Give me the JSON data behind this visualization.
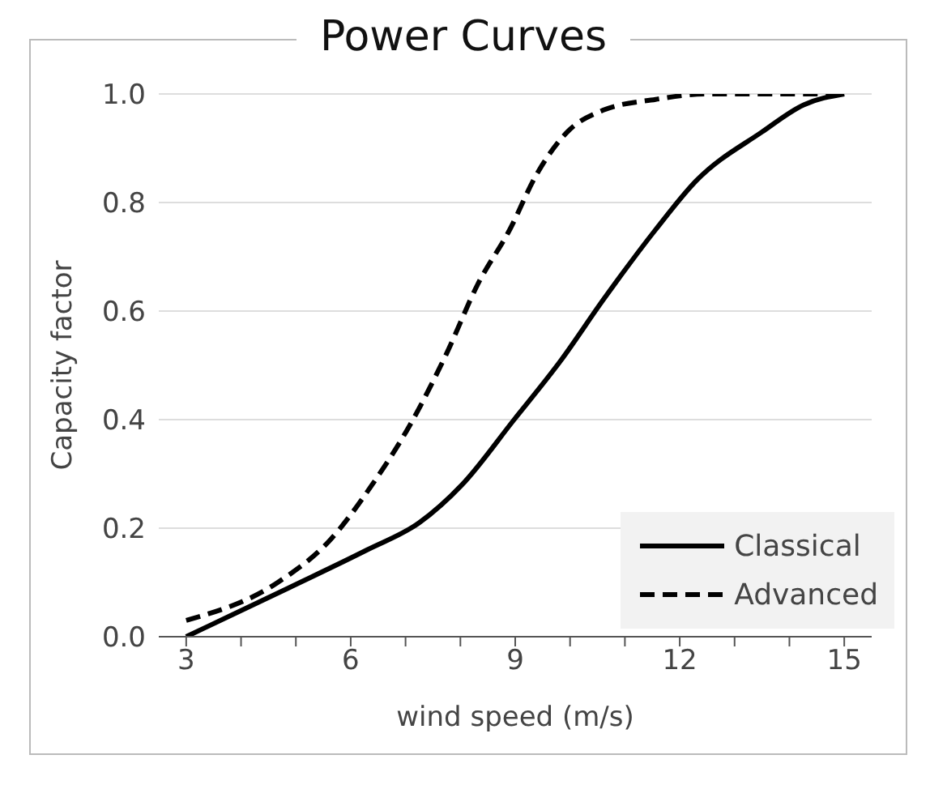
{
  "chart_data": {
    "type": "line",
    "title": "Power Curves",
    "xlabel": "wind speed (m/s)",
    "ylabel": "Capacity factor",
    "xlim": [
      2.5,
      15.5
    ],
    "xticks": [
      3,
      {
        "value": 4,
        "label": null
      },
      {
        "value": 5,
        "label": null
      },
      6,
      {
        "value": 7,
        "label": null
      },
      {
        "value": 8,
        "label": null
      },
      9,
      {
        "value": 10,
        "label": null
      },
      {
        "value": 11,
        "label": null
      },
      12,
      {
        "value": 13,
        "label": null
      },
      {
        "value": 14,
        "label": null
      },
      15
    ],
    "ylim": [
      0,
      1
    ],
    "yticks": [
      {
        "value": 0,
        "label": "0.0"
      },
      {
        "value": 0.2,
        "label": "0.2"
      },
      {
        "value": 0.4,
        "label": "0.4"
      },
      {
        "value": 0.6,
        "label": "0.6"
      },
      {
        "value": 0.8,
        "label": "0.8"
      },
      {
        "value": 1,
        "label": "1.0"
      }
    ],
    "grid": "y",
    "legend": "bottom right",
    "marker": "none",
    "series": [
      {
        "name": "Classical",
        "color": "#000000",
        "line_style": "solid",
        "x": [
          3,
          4.87,
          6.3,
          7.25,
          8.03,
          8.98,
          9.84,
          10.6,
          11.56,
          12.3,
          13.5,
          14.26,
          15
        ],
        "values": [
          0,
          0.09,
          0.16,
          0.21,
          0.28,
          0.4,
          0.51,
          0.62,
          0.75,
          0.84,
          0.93,
          0.98,
          1
        ]
      },
      {
        "name": "Advanced",
        "color": "#000000",
        "line_style": "dashed",
        "x": [
          3,
          4.67,
          5.64,
          6.39,
          7.08,
          7.74,
          8.32,
          8.9,
          9.38,
          9.95,
          10.6,
          11.56,
          12.5,
          15
        ],
        "values": [
          0.03,
          0.1,
          0.18,
          0.28,
          0.39,
          0.52,
          0.65,
          0.75,
          0.85,
          0.93,
          0.97,
          0.99,
          1,
          1
        ]
      }
    ]
  }
}
